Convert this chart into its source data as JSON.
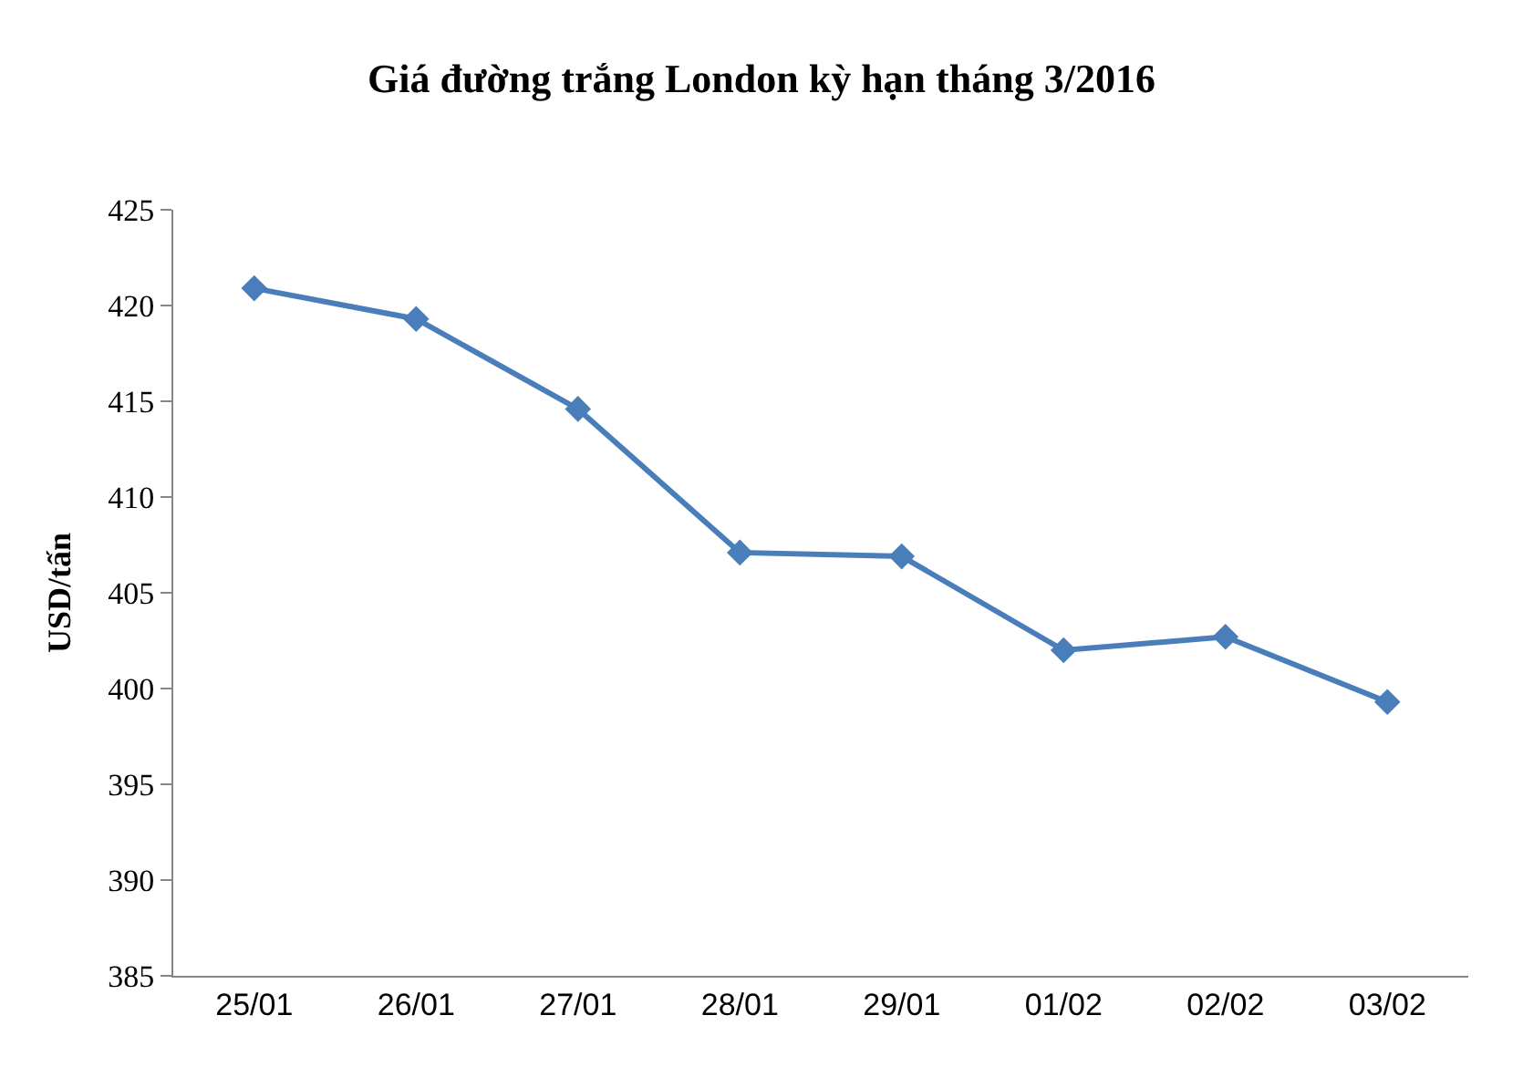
{
  "chart_data": {
    "type": "line",
    "title": "Giá đường trắng London kỳ hạn tháng 3/2016",
    "ylabel": "USD/tấn",
    "categories": [
      "25/01",
      "26/01",
      "27/01",
      "28/01",
      "29/01",
      "01/02",
      "02/02",
      "03/02"
    ],
    "series": [
      {
        "color": "#4a7ebb",
        "values": [
          420.9,
          419.3,
          414.6,
          407.1,
          406.9,
          402.0,
          402.7,
          399.3
        ]
      }
    ],
    "ylim": [
      385,
      425
    ],
    "yticks": [
      385,
      390,
      395,
      400,
      405,
      410,
      415,
      420,
      425
    ],
    "marker": "diamond",
    "line_style": "solid"
  }
}
